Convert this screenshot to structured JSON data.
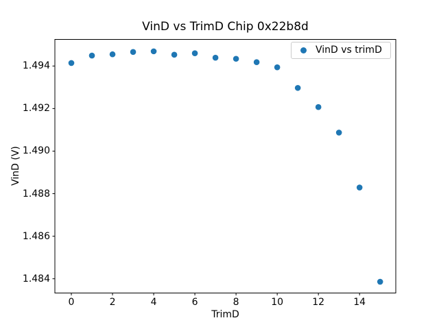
{
  "figure": {
    "background": "#ffffff",
    "text_color": "#000000"
  },
  "chart_data": {
    "type": "scatter",
    "title": "VinD vs TrimD Chip 0x22b8d",
    "xlabel": "TrimD",
    "ylabel": "VinD (V)",
    "x": [
      0,
      1,
      2,
      3,
      4,
      5,
      6,
      7,
      8,
      9,
      10,
      11,
      12,
      13,
      14,
      15
    ],
    "y": [
      1.49414,
      1.49449,
      1.49455,
      1.49466,
      1.49469,
      1.49453,
      1.4946,
      1.49439,
      1.49434,
      1.49418,
      1.49394,
      1.49297,
      1.49207,
      1.49087,
      1.48829,
      1.48386
    ],
    "series": [
      {
        "name": "VinD vs trimD",
        "marker": "circle",
        "color": "#1f77b4"
      }
    ],
    "marker_color": "#1f77b4",
    "xlim": [
      -0.8,
      15.76
    ],
    "ylim": [
      1.48333,
      1.49525
    ],
    "xticks": {
      "values": [
        0,
        2,
        4,
        6,
        8,
        10,
        12,
        14
      ],
      "labels": [
        "0",
        "2",
        "4",
        "6",
        "8",
        "10",
        "12",
        "14"
      ]
    },
    "yticks": {
      "values": [
        1.484,
        1.486,
        1.488,
        1.49,
        1.492,
        1.494
      ],
      "labels": [
        "1.484",
        "1.486",
        "1.488",
        "1.490",
        "1.492",
        "1.494"
      ]
    },
    "grid": false,
    "legend": {
      "label": "VinD vs trimD",
      "position": "upper right"
    },
    "frame_color": "#000000",
    "legend_border_color": "#cccccc"
  }
}
